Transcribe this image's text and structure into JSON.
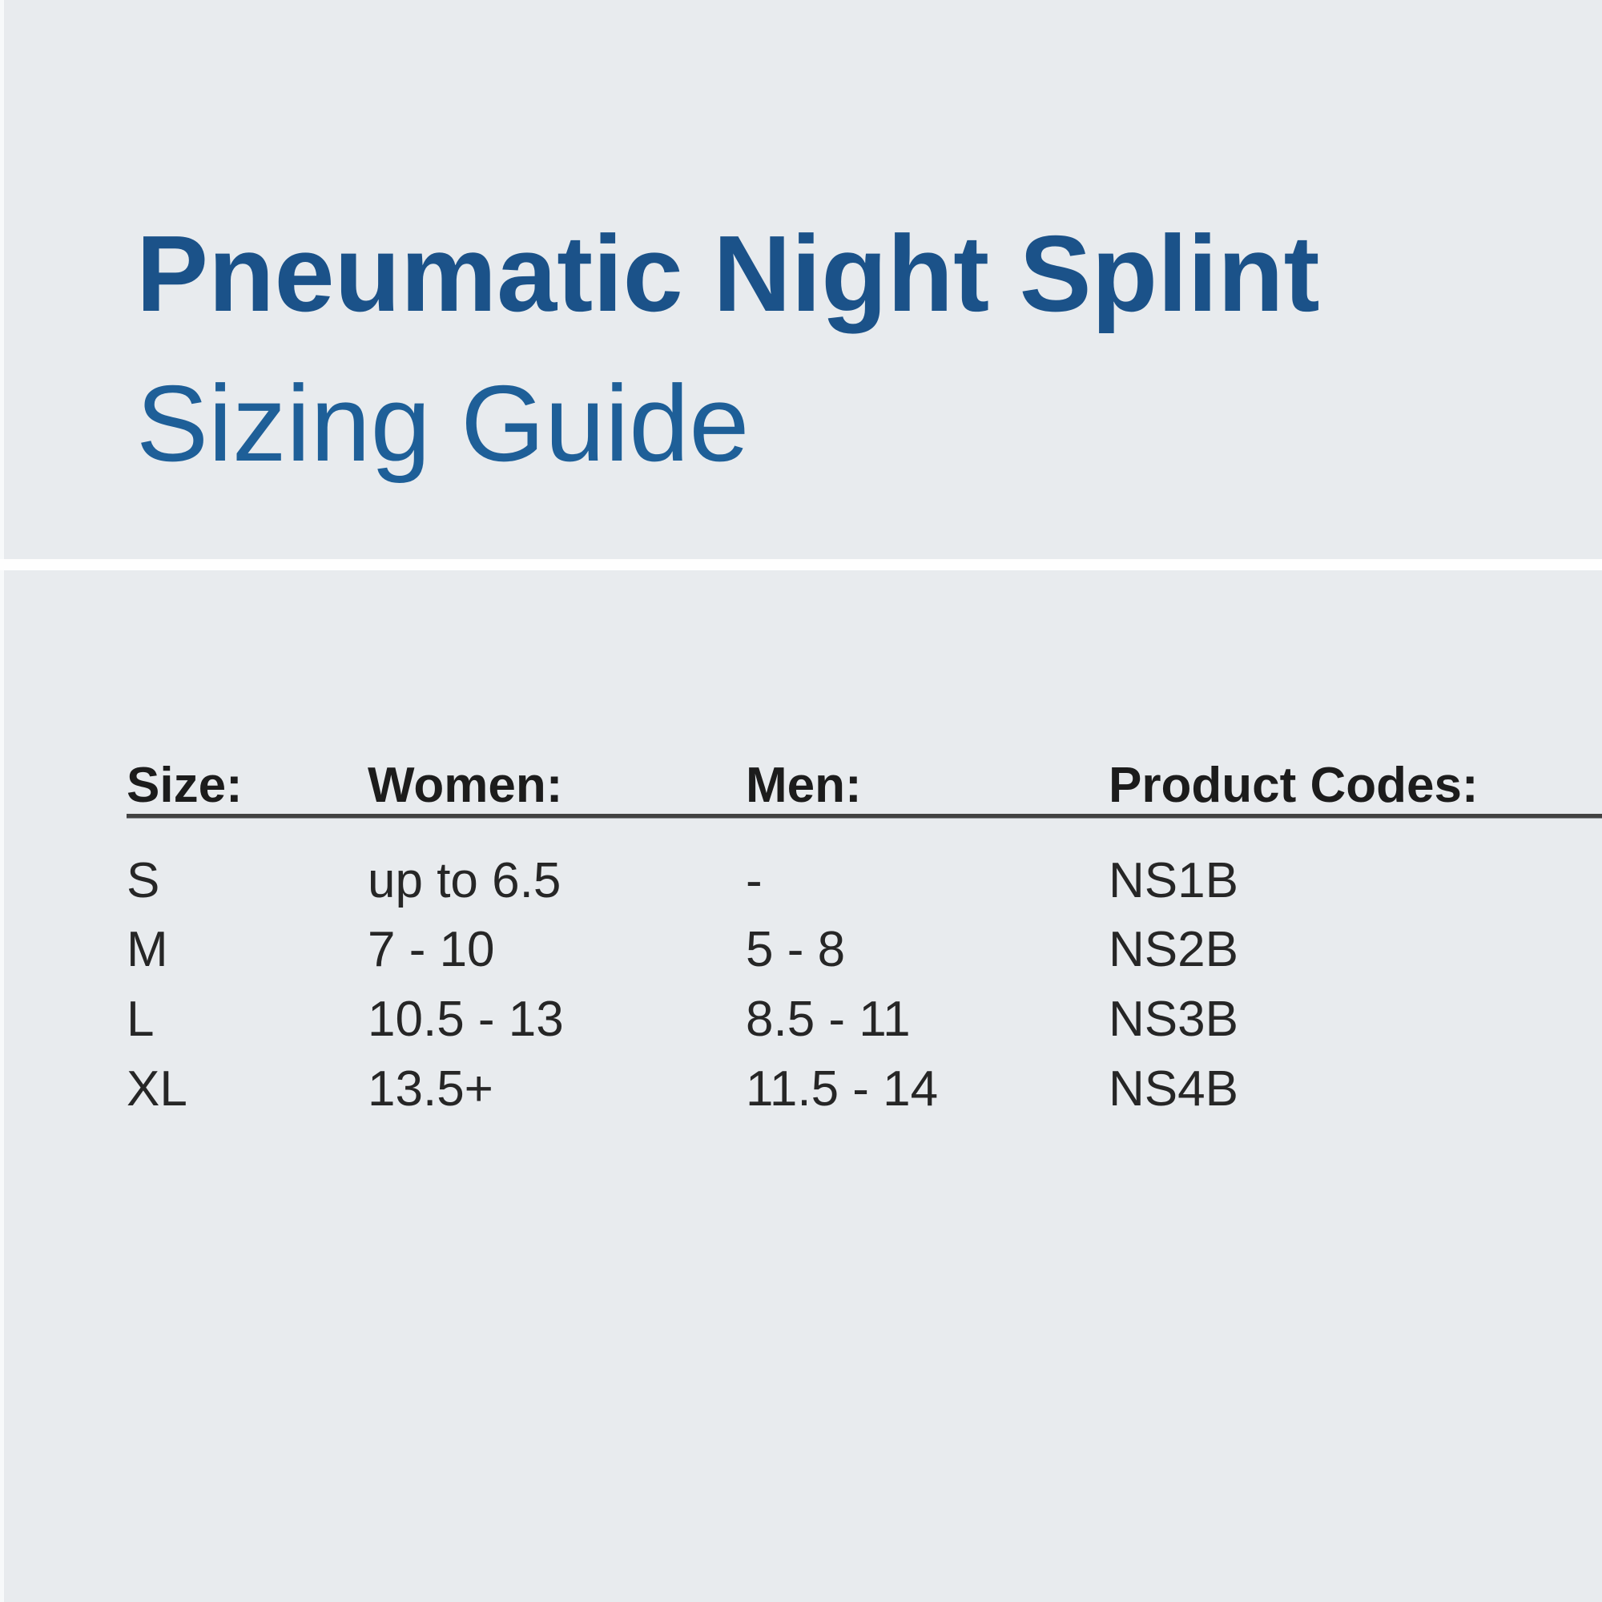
{
  "page": {
    "title_line1": "Pneumatic Night Splint",
    "title_line2": "Sizing Guide",
    "colors": {
      "title_bold_blue": "#1b5289",
      "title_light_blue": "#1e5f98",
      "background_gray": "#e8ebee",
      "divider_white": "#fefefe",
      "body_text": "#262626",
      "header_rule": "#424242"
    }
  },
  "table": {
    "headers": [
      "Size:",
      "Women:",
      "Men:",
      "Product Codes:"
    ],
    "rows": [
      [
        "S",
        "up to 6.5",
        "-",
        "NS1B"
      ],
      [
        "M",
        "7 - 10",
        "5 - 8",
        "NS2B"
      ],
      [
        "L",
        "10.5 - 13",
        "8.5 - 11",
        "NS3B"
      ],
      [
        "XL",
        "13.5+",
        "11.5 - 14",
        "NS4B"
      ]
    ]
  }
}
